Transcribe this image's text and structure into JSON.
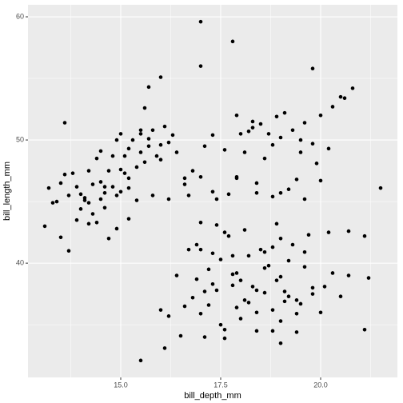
{
  "chart_data": {
    "type": "scatter",
    "x_label": "bill_depth_mm",
    "y_label": "bill_length_mm",
    "color": "#000000",
    "panel_color": "#ebebeb",
    "grid": true,
    "xlim": [
      12.68,
      21.92
    ],
    "ylim": [
      30.725,
      60.975
    ],
    "xticks": [
      {
        "value": 15,
        "label": "15.0"
      },
      17.5,
      {
        "value": 20,
        "label": "20.0"
      }
    ],
    "yticks": [
      40,
      50,
      60
    ],
    "xminor": [
      13.75,
      16.25,
      18.75,
      21.25
    ],
    "yminor": [
      35,
      45,
      55
    ],
    "x": [
      13.2,
      13.4,
      13.5,
      13.6,
      13.7,
      13.8,
      13.9,
      14.0,
      14.1,
      14.2,
      14.2,
      14.3,
      14.4,
      14.5,
      14.5,
      14.6,
      14.7,
      14.8,
      14.8,
      14.9,
      15.0,
      15.0,
      15.1,
      15.2,
      15.2,
      15.3,
      15.4,
      15.5,
      15.5,
      15.6,
      15.7,
      15.7,
      15.8,
      15.9,
      16.0,
      16.1,
      16.2,
      16.3,
      16.4,
      16.8,
      14.0,
      14.1,
      14.3,
      14.4,
      14.5,
      14.6,
      14.9,
      15.0,
      15.2,
      15.4,
      13.9,
      14.2,
      14.6,
      15.1,
      15.8,
      16.0,
      16.2,
      16.6,
      13.3,
      14.9,
      13.1,
      13.5,
      13.7,
      14.7,
      15.2,
      15.5,
      15.7,
      16.0,
      13.6,
      15.6,
      17.0,
      17.8,
      17.0,
      19.8,
      20.8,
      20.6,
      20.5,
      17.9,
      18.3,
      18.5,
      18.7,
      18.9,
      19.0,
      19.1,
      19.3,
      19.5,
      19.6,
      19.8,
      20.0,
      20.3,
      17.1,
      17.3,
      17.6,
      17.9,
      18.1,
      18.2,
      18.4,
      18.6,
      18.8,
      19.4,
      17.4,
      17.7,
      17.9,
      18.4,
      18.8,
      19.2,
      19.5,
      19.9,
      20.0,
      21.5,
      16.7,
      17.0,
      17.3,
      17.6,
      18.0,
      18.3,
      19.6,
      20.2,
      19.0,
      16.6,
      15.5,
      16.1,
      19.0,
      21.1,
      21.2,
      20.2,
      20.7,
      17.0,
      17.2,
      17.5,
      17.8,
      18.0,
      18.2,
      18.4,
      18.6,
      18.8,
      19.0,
      19.2,
      19.4,
      19.6,
      16.6,
      16.8,
      17.0,
      17.2,
      17.4,
      17.6,
      17.8,
      18.0,
      18.2,
      18.4,
      18.6,
      18.8,
      19.0,
      19.2,
      19.4,
      19.6,
      19.8,
      20.0,
      20.3,
      20.5,
      16.2,
      16.5,
      16.9,
      17.3,
      17.7,
      18.1,
      18.5,
      18.9,
      19.3,
      19.7,
      17.1,
      17.5,
      17.9,
      18.3,
      18.7,
      19.1,
      19.5,
      20.1,
      20.7,
      21.1,
      16.0,
      16.4,
      16.9,
      17.4,
      17.8,
      18.6,
      19.0,
      19.8,
      17.1,
      18.1,
      17.0,
      17.3,
      17.9,
      18.4,
      18.9,
      19.4,
      17.6,
      18.8,
      19.1,
      16.7
    ],
    "values": [
      46.1,
      45.0,
      46.5,
      47.2,
      45.5,
      47.3,
      46.2,
      45.6,
      45.1,
      47.5,
      44.9,
      46.4,
      48.5,
      46.6,
      49.1,
      45.7,
      47.5,
      48.7,
      46.2,
      50.0,
      47.6,
      50.5,
      48.7,
      46.1,
      49.3,
      50.0,
      47.8,
      49.0,
      50.8,
      48.2,
      50.1,
      49.5,
      50.8,
      48.7,
      49.6,
      51.1,
      49.8,
      50.4,
      49.0,
      47.5,
      44.4,
      45.3,
      44.0,
      43.3,
      45.2,
      46.2,
      45.5,
      45.8,
      46.9,
      45.1,
      43.5,
      43.2,
      44.5,
      47.3,
      45.5,
      48.4,
      45.2,
      46.4,
      44.9,
      42.8,
      43.0,
      42.1,
      41.0,
      42.0,
      43.6,
      50.5,
      54.3,
      55.1,
      51.4,
      52.6,
      59.6,
      58.0,
      56.0,
      55.8,
      54.2,
      53.4,
      53.5,
      52.0,
      51.5,
      51.3,
      50.5,
      51.9,
      50.2,
      52.2,
      50.8,
      50.0,
      51.4,
      49.7,
      52.0,
      52.7,
      49.5,
      50.4,
      49.2,
      46.9,
      49.0,
      50.7,
      46.5,
      48.5,
      49.6,
      46.8,
      45.2,
      45.6,
      47.0,
      45.7,
      45.4,
      46.0,
      49.0,
      48.1,
      46.7,
      46.1,
      45.5,
      47.0,
      45.8,
      42.5,
      50.5,
      51.0,
      45.2,
      49.3,
      45.7,
      46.9,
      32.1,
      33.1,
      33.5,
      34.6,
      38.8,
      42.5,
      42.6,
      41.1,
      39.5,
      40.3,
      39.1,
      38.6,
      40.6,
      37.8,
      39.6,
      41.3,
      38.9,
      40.2,
      37.0,
      39.7,
      36.5,
      37.2,
      35.9,
      36.6,
      37.8,
      34.6,
      38.2,
      35.5,
      36.8,
      34.5,
      37.6,
      36.2,
      35.3,
      37.3,
      34.4,
      40.9,
      38.0,
      36.0,
      39.2,
      37.3,
      35.7,
      34.1,
      38.7,
      40.8,
      42.2,
      42.7,
      41.1,
      43.2,
      41.5,
      42.3,
      34.0,
      35.0,
      36.4,
      38.1,
      39.8,
      37.7,
      36.7,
      38.1,
      39.0,
      42.2,
      36.2,
      39.0,
      41.5,
      43.1,
      40.6,
      40.9,
      42.0,
      37.5,
      37.7,
      37.0,
      43.3,
      38.3,
      39.2,
      36.0,
      38.6,
      35.9,
      33.9,
      34.5,
      36.9,
      41.1
    ]
  }
}
